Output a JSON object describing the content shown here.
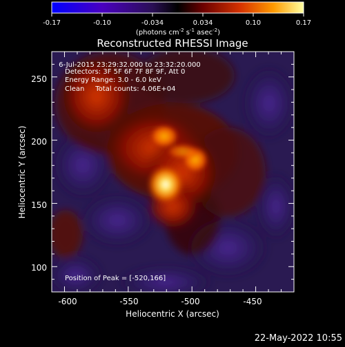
{
  "colorbar": {
    "ticks": [
      "-0.17",
      "-0.10",
      "-0.034",
      "0.034",
      "0.10",
      "0.17"
    ],
    "unit_main": "(photons cm",
    "unit_exp1": "-2",
    "unit_mid": " s",
    "unit_exp2": "-1",
    "unit_end": " asec",
    "unit_exp3": "-2",
    "unit_close": ")"
  },
  "plot": {
    "title": "Reconstructed RHESSI Image",
    "xlabel": "Heliocentric X (arcsec)",
    "ylabel": "Heliocentric Y (arcsec)",
    "x_ticks": [
      "-600",
      "-550",
      "-500",
      "-450"
    ],
    "y_ticks": [
      "250",
      "200",
      "150",
      "100"
    ],
    "info": [
      " 6-Jul-2015 23:29:32.000 to 23:32:20.000",
      "Detectors: 3F 5F 6F 7F 8F 9F, Att 0",
      "Energy Range: 3.0 - 6.0 keV",
      "Clean     Total counts: 4.06E+04"
    ],
    "peak_label": "Position of Peak = [-520,166]"
  },
  "footer": {
    "date": "22-May-2022 10:55"
  },
  "image_meta": {
    "xlim": [
      -610,
      -420
    ],
    "ylim": [
      80,
      270
    ],
    "peak": [
      -520,
      166
    ],
    "colormap": [
      "#0000ff",
      "#3a00a0",
      "#1b1b50",
      "#000000",
      "#5a0000",
      "#c81e00",
      "#ff8c00",
      "#ffff50",
      "#ffffff"
    ]
  }
}
